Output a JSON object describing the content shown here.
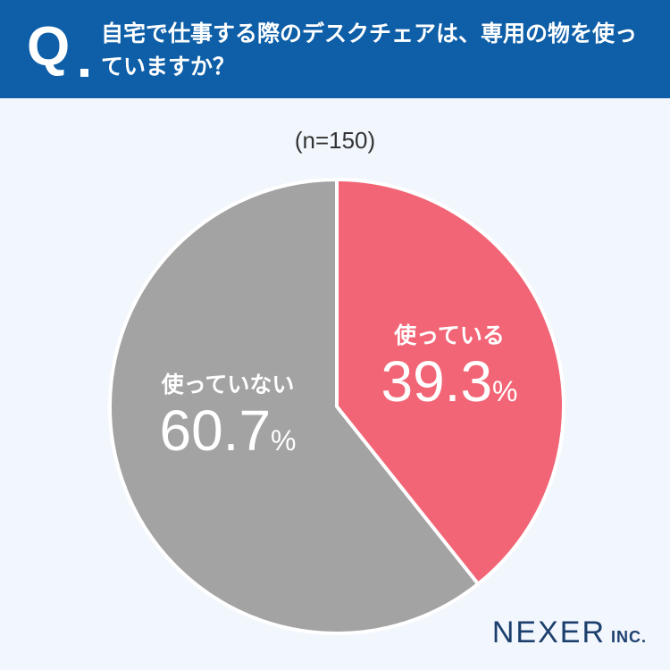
{
  "header": {
    "q_mark": "Q",
    "question": "自宅で仕事する際のデスクチェアは、専用の物を使っていますか？"
  },
  "sample_size": "(n=150)",
  "chart_data": {
    "type": "pie",
    "title": "",
    "slices": [
      {
        "label": "使っている",
        "value": 39.3,
        "display": "39.3",
        "unit": "%",
        "color": "#f26576"
      },
      {
        "label": "使っていない",
        "value": 60.7,
        "display": "60.7",
        "unit": "%",
        "color": "#a3a3a3"
      }
    ],
    "start": "12 o'clock",
    "direction": "clockwise"
  },
  "logo": {
    "main": "NEXER",
    "suffix": "INC."
  }
}
